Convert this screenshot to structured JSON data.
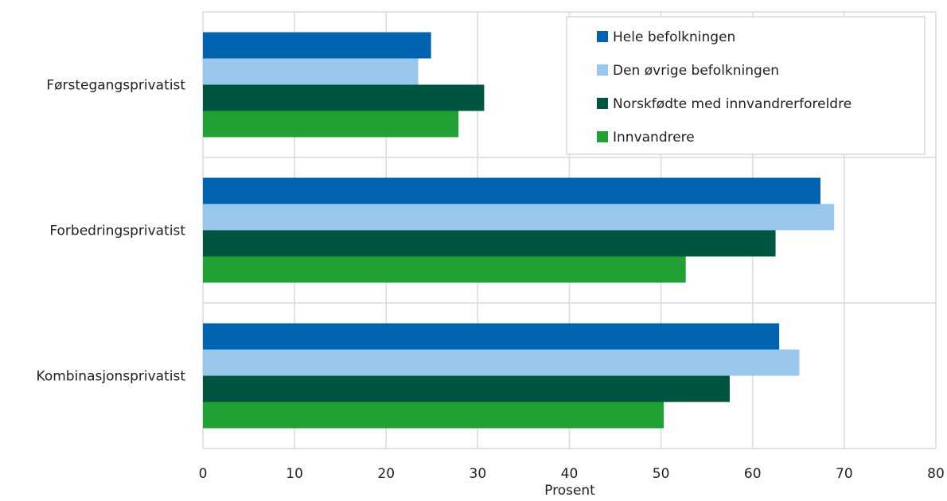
{
  "chart_data": {
    "type": "bar",
    "orientation": "horizontal",
    "title": "",
    "xlabel": "Prosent",
    "ylabel": "",
    "xlim": [
      0,
      80
    ],
    "xticks": [
      0,
      10,
      20,
      30,
      40,
      50,
      60,
      70,
      80
    ],
    "grid": true,
    "legend_position": "top-right",
    "categories": [
      "Førstegangsprivatist",
      "Forbedringsprivatist",
      "Kombinasjonsprivatist"
    ],
    "series": [
      {
        "name": "Hele befolkningen",
        "color": "#0063b0",
        "values": [
          24.9,
          67.4,
          62.9
        ]
      },
      {
        "name": "Den øvrige befolkningen",
        "color": "#99c8ec",
        "values": [
          23.5,
          68.9,
          65.1
        ]
      },
      {
        "name": "Norskfødte med innvandrerforeldre",
        "color": "#005541",
        "values": [
          30.7,
          62.5,
          57.5
        ]
      },
      {
        "name": "Innvandrere",
        "color": "#21a134",
        "values": [
          27.9,
          52.7,
          50.3
        ]
      }
    ]
  }
}
